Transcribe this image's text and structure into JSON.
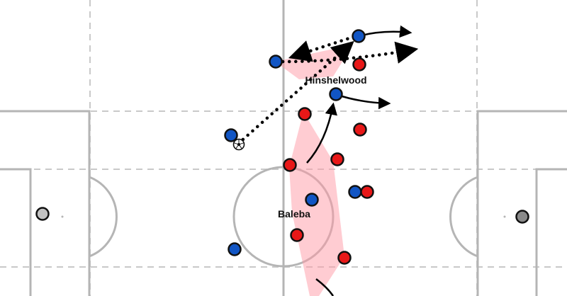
{
  "labels": {
    "player_1": "Hinshelwood",
    "player_2": "Baleba"
  },
  "colors": {
    "pitch_background": "#ffffff",
    "pitch_lines": "#b5b5b5",
    "zone_lines": "#c9c9c9",
    "blue_team": "#1155c4",
    "red_team": "#e81818",
    "goalkeeper_left": "#c2c2c2",
    "goalkeeper_right": "#8a8a8a",
    "shape_fill": "#ff9aa5",
    "arrows": "#000000"
  },
  "icons": {
    "ball": "football-icon"
  }
}
